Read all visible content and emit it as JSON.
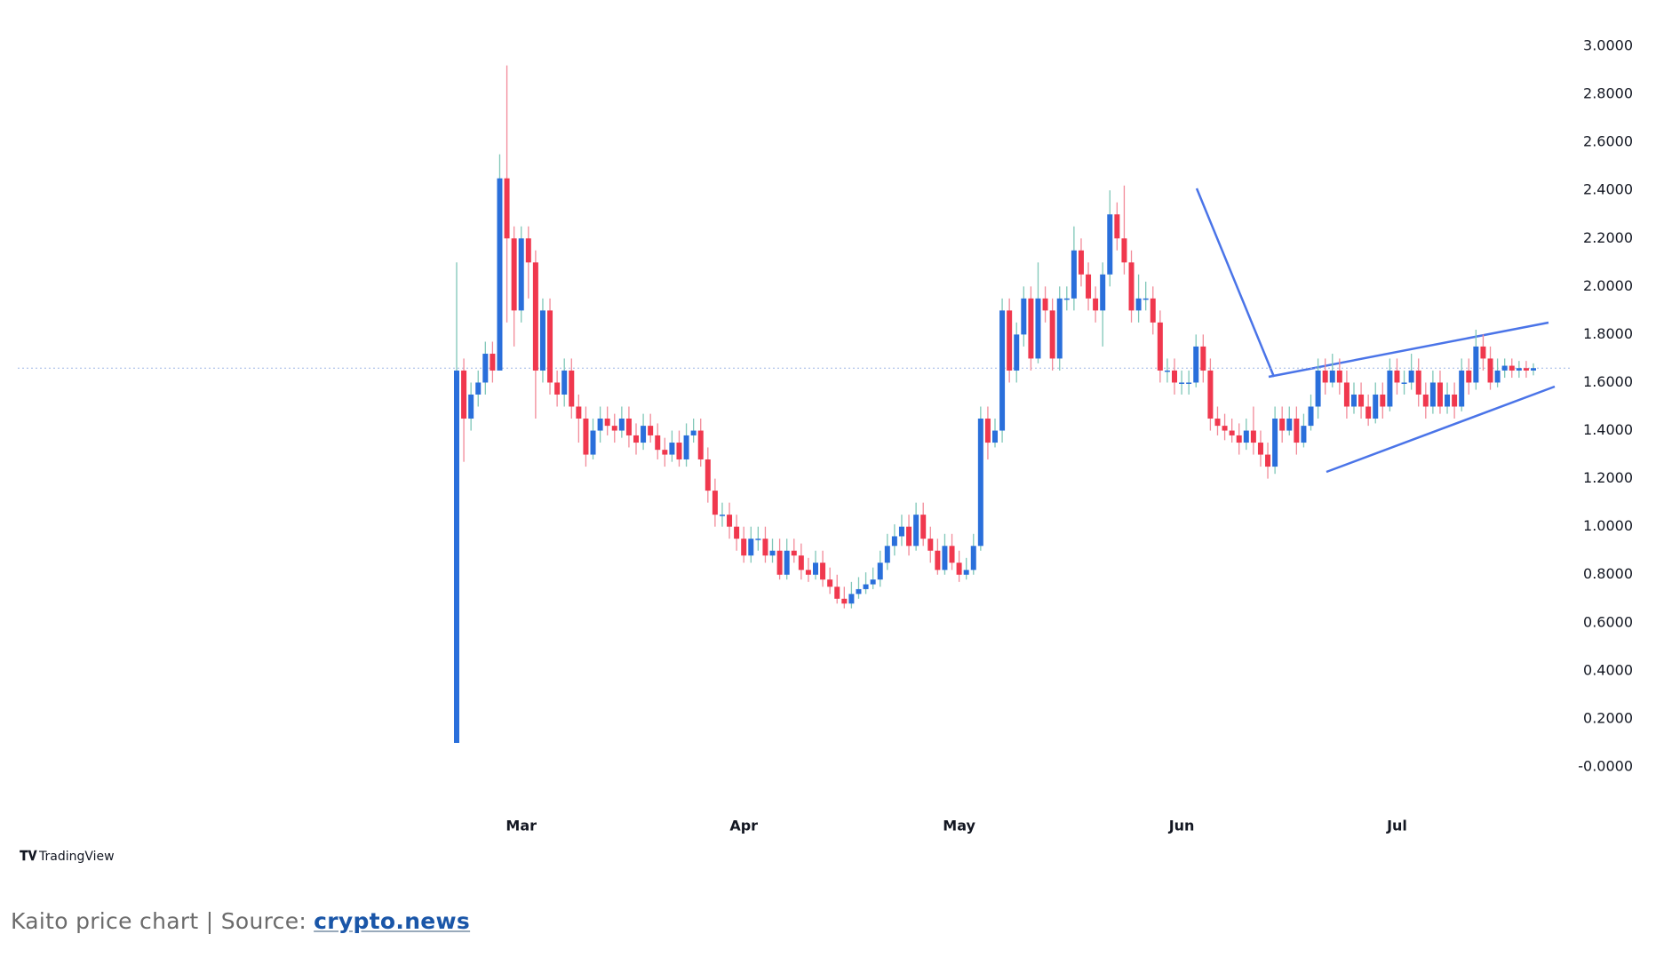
{
  "chart_data": {
    "type": "candlestick",
    "up_color": "#2a6fdb",
    "down_color": "#f0384e",
    "xlim": [
      0,
      150
    ],
    "xticks": [
      {
        "value": 9,
        "label": "Mar"
      },
      {
        "value": 40,
        "label": "Apr"
      },
      {
        "value": 70,
        "label": "May"
      },
      {
        "value": 101,
        "label": "Jun"
      },
      {
        "value": 131,
        "label": "Jul"
      }
    ],
    "ylim": [
      -0.15,
      3.1
    ],
    "yticks": [
      {
        "value": 3,
        "label": "3.0000"
      },
      {
        "value": 2.8,
        "label": "2.8000"
      },
      {
        "value": 2.6,
        "label": "2.6000"
      },
      {
        "value": 2.4,
        "label": "2.4000"
      },
      {
        "value": 2.2,
        "label": "2.2000"
      },
      {
        "value": 2,
        "label": "2.0000"
      },
      {
        "value": 1.8,
        "label": "1.8000"
      },
      {
        "value": 1.6,
        "label": "1.6000"
      },
      {
        "value": 1.4,
        "label": "1.4000"
      },
      {
        "value": 1.2,
        "label": "1.2000"
      },
      {
        "value": 1,
        "label": "1.0000"
      },
      {
        "value": 0.8,
        "label": "0.8000"
      },
      {
        "value": 0.6,
        "label": "0.6000"
      },
      {
        "value": 0.4,
        "label": "0.4000"
      },
      {
        "value": 0.2,
        "label": "0.2000"
      },
      {
        "value": 0,
        "label": "-0.0000"
      }
    ],
    "open": [
      0.1,
      1.65,
      1.45,
      1.55,
      1.6,
      1.72,
      1.65,
      2.45,
      2.2,
      1.9,
      2.2,
      2.1,
      1.65,
      1.9,
      1.6,
      1.55,
      1.65,
      1.5,
      1.45,
      1.3,
      1.4,
      1.45,
      1.42,
      1.4,
      1.45,
      1.38,
      1.35,
      1.42,
      1.38,
      1.32,
      1.3,
      1.35,
      1.28,
      1.38,
      1.4,
      1.28,
      1.15,
      1.05,
      1.05,
      1.0,
      0.95,
      0.88,
      0.95,
      0.95,
      0.88,
      0.9,
      0.8,
      0.9,
      0.88,
      0.82,
      0.8,
      0.85,
      0.78,
      0.75,
      0.7,
      0.68,
      0.72,
      0.74,
      0.76,
      0.78,
      0.85,
      0.92,
      0.96,
      1.0,
      0.92,
      1.05,
      0.95,
      0.9,
      0.82,
      0.92,
      0.85,
      0.8,
      0.82,
      0.92,
      1.45,
      1.35,
      1.4,
      1.9,
      1.65,
      1.8,
      1.95,
      1.7,
      1.95,
      1.9,
      1.7,
      1.95,
      1.95,
      2.15,
      2.05,
      1.95,
      1.9,
      2.05,
      2.3,
      2.2,
      2.1,
      1.9,
      1.95,
      1.95,
      1.85,
      1.65,
      1.65,
      1.6,
      1.6,
      1.6,
      1.75,
      1.65,
      1.45,
      1.42,
      1.4,
      1.38,
      1.35,
      1.4,
      1.35,
      1.3,
      1.25,
      1.45,
      1.4,
      1.45,
      1.35,
      1.42,
      1.5,
      1.65,
      1.6,
      1.65,
      1.6,
      1.5,
      1.55,
      1.5,
      1.45,
      1.55,
      1.5,
      1.65,
      1.6,
      1.6,
      1.65,
      1.55,
      1.5,
      1.6,
      1.5,
      1.55,
      1.5,
      1.65,
      1.6,
      1.75,
      1.7,
      1.6,
      1.65,
      1.67,
      1.65,
      1.66,
      1.65
    ],
    "high": [
      2.1,
      1.7,
      1.6,
      1.65,
      1.77,
      1.77,
      2.55,
      2.92,
      2.25,
      2.25,
      2.25,
      2.15,
      1.95,
      1.95,
      1.65,
      1.7,
      1.7,
      1.55,
      1.5,
      1.45,
      1.5,
      1.5,
      1.47,
      1.5,
      1.5,
      1.43,
      1.47,
      1.47,
      1.43,
      1.37,
      1.4,
      1.4,
      1.43,
      1.45,
      1.45,
      1.33,
      1.2,
      1.1,
      1.1,
      1.05,
      1.0,
      1.0,
      1.0,
      1.0,
      0.95,
      0.95,
      0.95,
      0.95,
      0.93,
      0.87,
      0.9,
      0.9,
      0.83,
      0.8,
      0.75,
      0.77,
      0.79,
      0.81,
      0.83,
      0.9,
      0.97,
      1.01,
      1.05,
      1.05,
      1.1,
      1.1,
      1.0,
      0.95,
      0.97,
      0.97,
      0.9,
      0.87,
      0.97,
      1.5,
      1.5,
      1.45,
      1.95,
      1.95,
      1.85,
      2.0,
      2.0,
      2.1,
      2.0,
      1.95,
      2.0,
      2.0,
      2.25,
      2.2,
      2.1,
      2.0,
      2.1,
      2.4,
      2.35,
      2.42,
      2.15,
      2.05,
      2.02,
      2.0,
      1.9,
      1.7,
      1.7,
      1.65,
      1.65,
      1.8,
      1.8,
      1.7,
      1.5,
      1.47,
      1.45,
      1.43,
      1.45,
      1.5,
      1.4,
      1.35,
      1.5,
      1.5,
      1.5,
      1.5,
      1.47,
      1.55,
      1.7,
      1.7,
      1.72,
      1.7,
      1.65,
      1.6,
      1.6,
      1.55,
      1.6,
      1.6,
      1.7,
      1.7,
      1.65,
      1.72,
      1.7,
      1.6,
      1.65,
      1.65,
      1.6,
      1.6,
      1.7,
      1.7,
      1.82,
      1.8,
      1.75,
      1.7,
      1.7,
      1.7,
      1.69,
      1.69,
      1.68
    ],
    "low": [
      0.1,
      1.27,
      1.4,
      1.5,
      1.55,
      1.6,
      1.65,
      1.85,
      1.75,
      1.85,
      1.95,
      1.45,
      1.6,
      1.55,
      1.5,
      1.5,
      1.45,
      1.35,
      1.25,
      1.28,
      1.35,
      1.38,
      1.35,
      1.37,
      1.33,
      1.3,
      1.32,
      1.35,
      1.28,
      1.25,
      1.27,
      1.25,
      1.25,
      1.35,
      1.25,
      1.1,
      1.0,
      1.0,
      0.95,
      0.9,
      0.85,
      0.85,
      0.9,
      0.85,
      0.85,
      0.78,
      0.78,
      0.85,
      0.78,
      0.77,
      0.78,
      0.75,
      0.72,
      0.68,
      0.66,
      0.66,
      0.7,
      0.72,
      0.74,
      0.75,
      0.82,
      0.88,
      0.92,
      0.88,
      0.9,
      0.92,
      0.85,
      0.8,
      0.8,
      0.82,
      0.77,
      0.78,
      0.8,
      0.9,
      1.28,
      1.33,
      1.35,
      1.6,
      1.6,
      1.75,
      1.65,
      1.68,
      1.85,
      1.65,
      1.65,
      1.9,
      1.9,
      2.0,
      1.9,
      1.85,
      1.75,
      2.0,
      2.15,
      2.05,
      1.85,
      1.85,
      1.9,
      1.8,
      1.6,
      1.6,
      1.55,
      1.55,
      1.55,
      1.58,
      1.6,
      1.4,
      1.38,
      1.36,
      1.35,
      1.3,
      1.32,
      1.3,
      1.25,
      1.2,
      1.22,
      1.35,
      1.38,
      1.3,
      1.33,
      1.4,
      1.45,
      1.55,
      1.58,
      1.55,
      1.45,
      1.47,
      1.45,
      1.42,
      1.43,
      1.45,
      1.48,
      1.55,
      1.55,
      1.57,
      1.5,
      1.45,
      1.47,
      1.47,
      1.47,
      1.45,
      1.48,
      1.55,
      1.57,
      1.65,
      1.57,
      1.58,
      1.62,
      1.62,
      1.62,
      1.62,
      1.63
    ],
    "close": [
      1.65,
      1.45,
      1.55,
      1.6,
      1.72,
      1.65,
      2.45,
      2.2,
      1.9,
      2.2,
      2.1,
      1.65,
      1.9,
      1.6,
      1.55,
      1.65,
      1.5,
      1.45,
      1.3,
      1.4,
      1.45,
      1.42,
      1.4,
      1.45,
      1.38,
      1.35,
      1.42,
      1.38,
      1.32,
      1.3,
      1.35,
      1.28,
      1.38,
      1.4,
      1.28,
      1.15,
      1.05,
      1.05,
      1.0,
      0.95,
      0.88,
      0.95,
      0.95,
      0.88,
      0.9,
      0.8,
      0.9,
      0.88,
      0.82,
      0.8,
      0.85,
      0.78,
      0.75,
      0.7,
      0.68,
      0.72,
      0.74,
      0.76,
      0.78,
      0.85,
      0.92,
      0.96,
      1.0,
      0.92,
      1.05,
      0.95,
      0.9,
      0.82,
      0.92,
      0.85,
      0.8,
      0.82,
      0.92,
      1.45,
      1.35,
      1.4,
      1.9,
      1.65,
      1.8,
      1.95,
      1.7,
      1.95,
      1.9,
      1.7,
      1.95,
      1.95,
      2.15,
      2.05,
      1.95,
      1.9,
      2.05,
      2.3,
      2.2,
      2.1,
      1.9,
      1.95,
      1.95,
      1.85,
      1.65,
      1.65,
      1.6,
      1.6,
      1.6,
      1.75,
      1.65,
      1.45,
      1.42,
      1.4,
      1.38,
      1.35,
      1.4,
      1.35,
      1.3,
      1.25,
      1.45,
      1.4,
      1.45,
      1.35,
      1.42,
      1.5,
      1.65,
      1.6,
      1.65,
      1.6,
      1.5,
      1.55,
      1.5,
      1.45,
      1.55,
      1.5,
      1.65,
      1.6,
      1.6,
      1.65,
      1.55,
      1.5,
      1.6,
      1.5,
      1.55,
      1.5,
      1.65,
      1.6,
      1.75,
      1.7,
      1.6,
      1.65,
      1.67,
      1.65,
      1.66,
      1.65,
      1.66
    ],
    "watermark": "TradingView"
  },
  "caption": {
    "text": "Kaito price chart | Source:",
    "link": "crypto.news"
  }
}
